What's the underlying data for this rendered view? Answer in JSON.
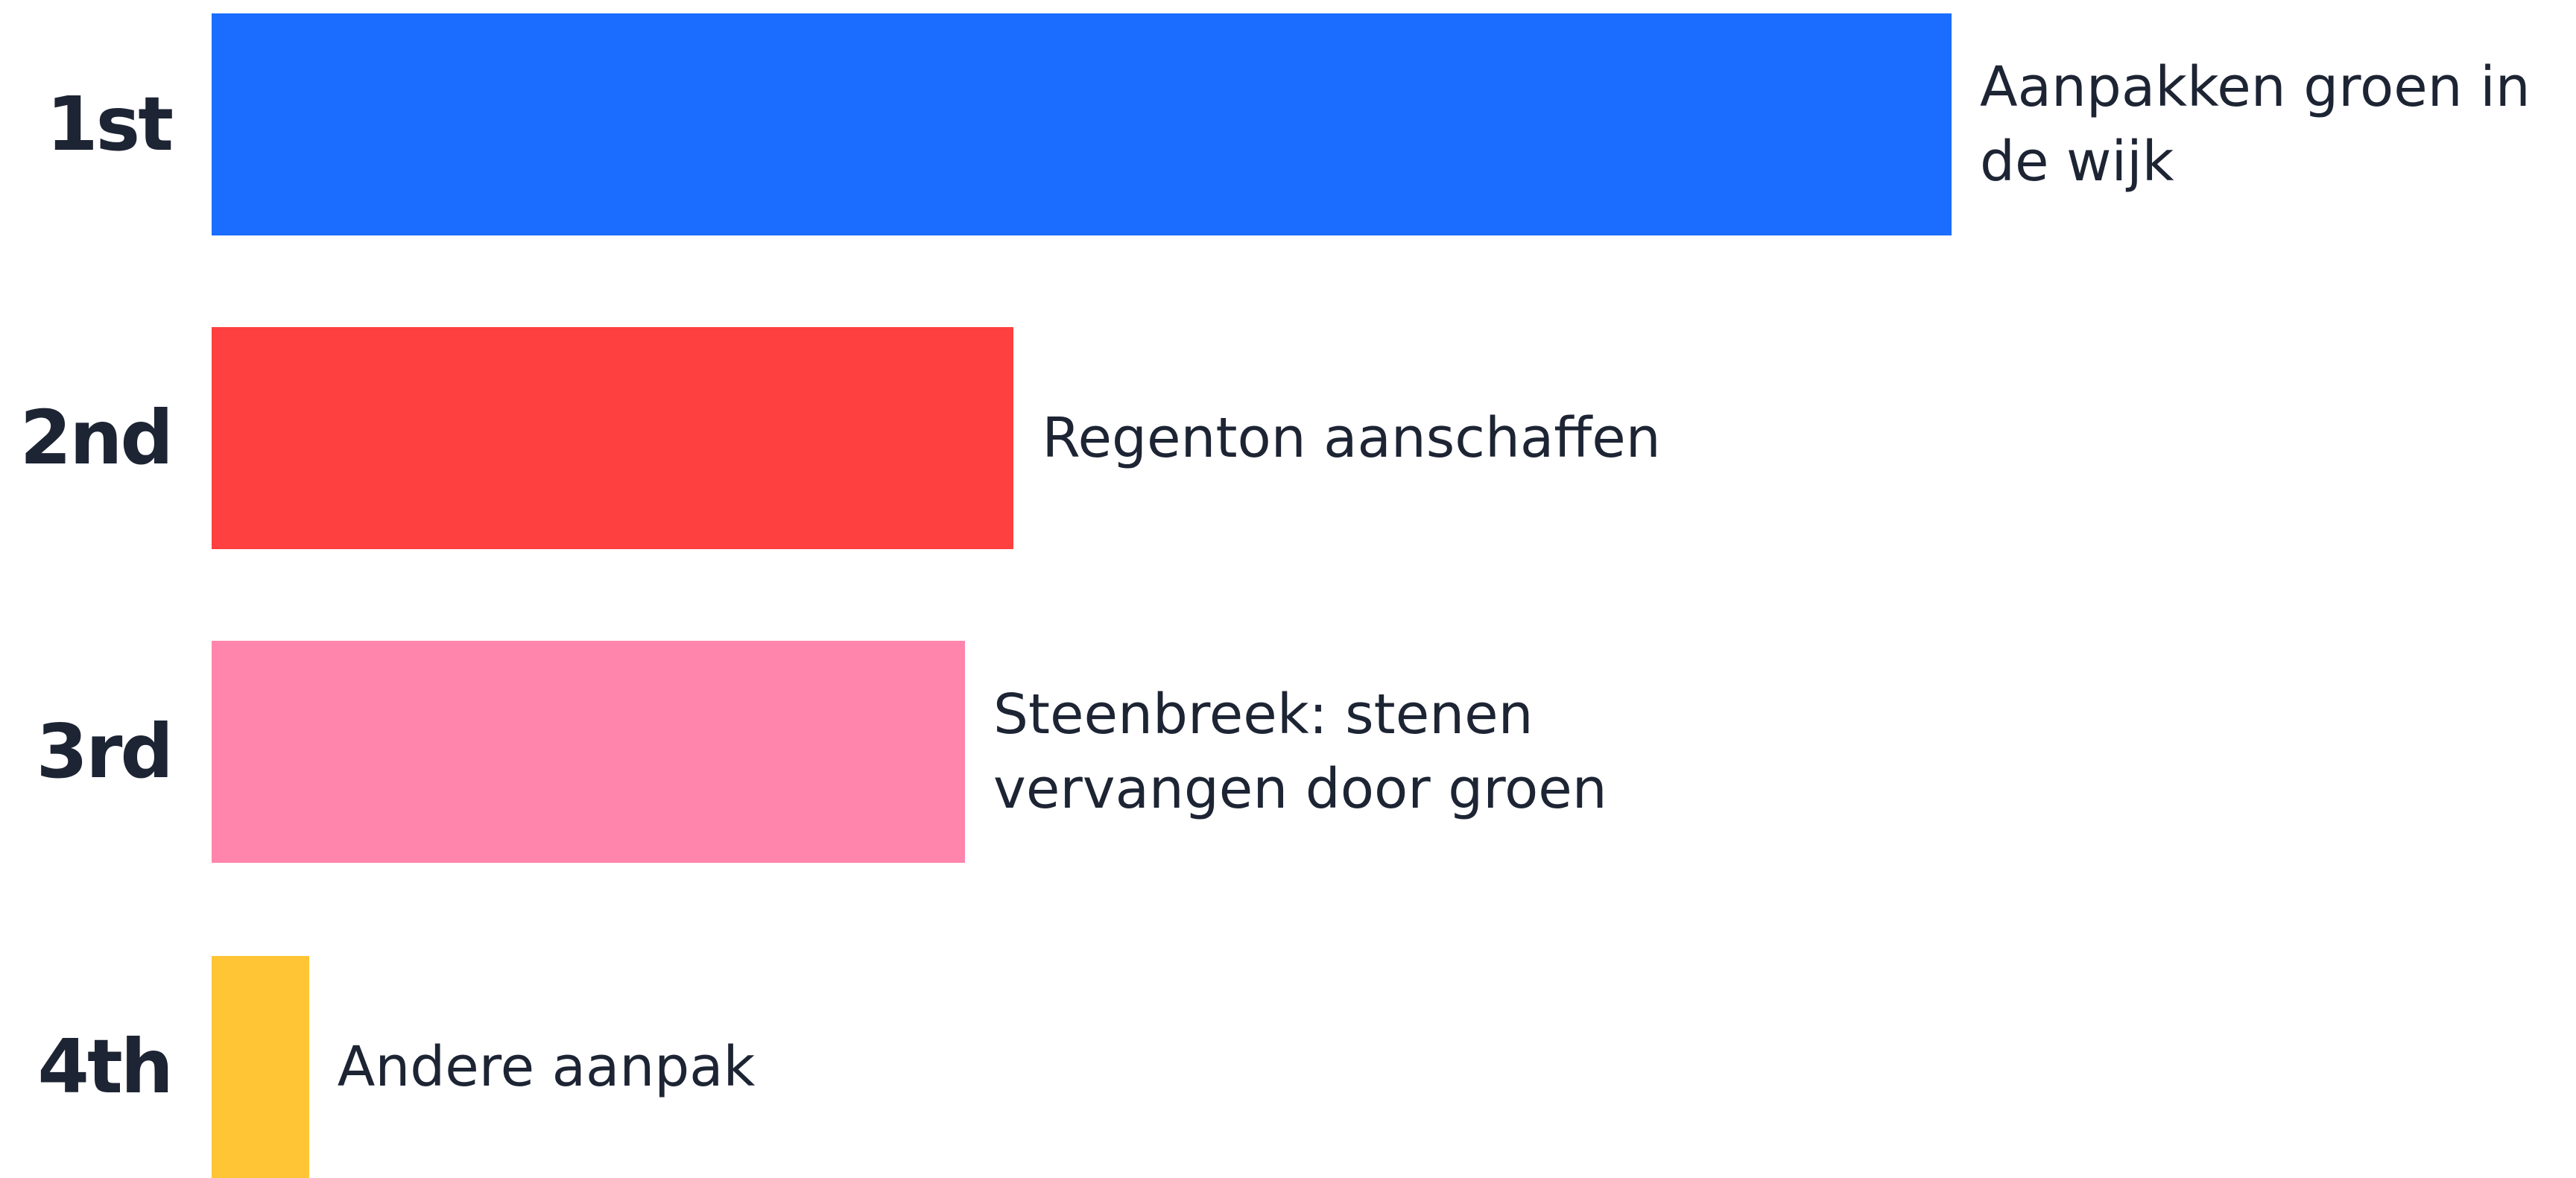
{
  "chart_data": {
    "type": "bar",
    "categories": [
      "1st",
      "2nd",
      "3rd",
      "4th"
    ],
    "series": [
      {
        "name": null,
        "values": [
          100,
          46.1,
          43.3,
          5.6
        ]
      }
    ],
    "labels": [
      "Aanpakken groen in de wijk",
      "Regenton aanschaffen",
      "Steenbreek: stenen vervangen door groen",
      "Andere aanpak"
    ],
    "colors": [
      "#1a6dff",
      "#ff4040",
      "#ff85ad",
      "#ffc535"
    ],
    "xlim": [
      0,
      100
    ]
  }
}
